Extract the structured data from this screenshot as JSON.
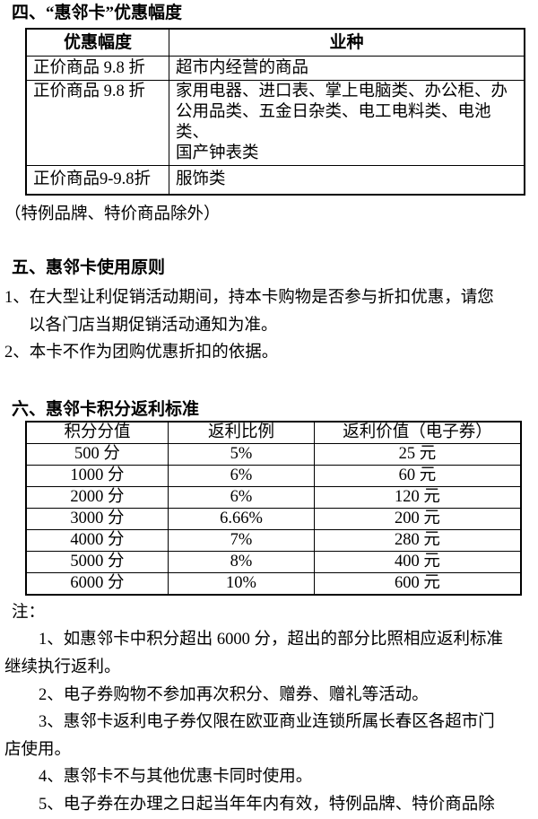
{
  "doc": {
    "section4": {
      "heading": "四、“惠邻卡”优惠幅度",
      "table": {
        "headers": [
          "优惠幅度",
          "业种"
        ],
        "rows": [
          [
            "正价商品 9.8 折",
            "超市内经营的商品"
          ],
          [
            "正价商品 9.8 折",
            "家用电器、进口表、掌上电脑类、办公柜、办\n公用品类、五金日杂类、电工电料类、电池类、\n国产钟表类"
          ],
          [
            "正价商品9-9.8折",
            "服饰类"
          ]
        ]
      },
      "exception_note": "（特例品牌、特价商品除外）"
    },
    "section5": {
      "heading": "五、惠邻卡使用原则",
      "items": [
        "1、在大型让利促销活动期间，持本卡购物是否参与折扣优惠，请您\n以各门店当期促销活动通知为准。",
        "2、本卡不作为团购优惠折扣的依据。"
      ]
    },
    "section6": {
      "heading": "六、惠邻卡积分返利标准",
      "table": {
        "headers": [
          "积分分值",
          "返利比例",
          "返利价值（电子券）"
        ],
        "rows": [
          [
            "500 分",
            "5%",
            "25 元"
          ],
          [
            "1000 分",
            "6%",
            "60 元"
          ],
          [
            "2000 分",
            "6%",
            "120 元"
          ],
          [
            "3000 分",
            "6.66%",
            "200 元"
          ],
          [
            "4000 分",
            "7%",
            "280 元"
          ],
          [
            "5000 分",
            "8%",
            "400 元"
          ],
          [
            "6000 分",
            "10%",
            "600 元"
          ]
        ]
      }
    },
    "notes": {
      "label": "注：",
      "items": [
        "1、如惠邻卡中积分超出 6000 分，超出的部分比照相应返利标准\n继续执行返利。",
        "2、电子券购物不参加再次积分、赠券、赠礼等活动。",
        "3、惠邻卡返利电子券仅限在欧亚商业连锁所属长春区各超市门\n店使用。",
        "4、惠邻卡不与其他优惠卡同时使用。",
        "5、电子券在办理之日起当年年内有效，特例品牌、特价商品除"
      ]
    }
  }
}
